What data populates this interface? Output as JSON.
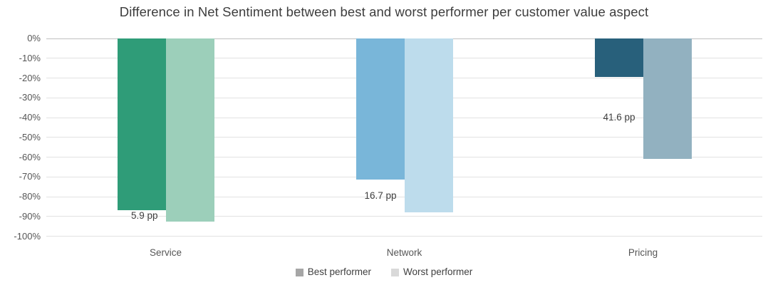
{
  "chart_data": {
    "type": "bar",
    "title": "Difference in Net Sentiment between best and worst performer per customer value aspect",
    "orientation": "vertical",
    "categories": [
      "Service",
      "Network",
      "Pricing"
    ],
    "series": [
      {
        "name": "Best performer",
        "legend_color": "#a6a6a6",
        "values": [
          -86.8,
          -71.2,
          -19.3
        ],
        "bar_colors": [
          "#2f9c78",
          "#79b6d9",
          "#28607b"
        ]
      },
      {
        "name": "Worst performer",
        "legend_color": "#d9d9d9",
        "values": [
          -92.7,
          -87.9,
          -60.9
        ],
        "bar_colors": [
          "#9ccfba",
          "#bddcec",
          "#92b1c0"
        ]
      }
    ],
    "difference_labels": [
      "5.9 pp",
      "16.7 pp",
      "41.6 pp"
    ],
    "y_ticks": [
      {
        "label": "0%",
        "value": 0
      },
      {
        "label": "-10%",
        "value": -10
      },
      {
        "label": "-20%",
        "value": -20
      },
      {
        "label": "-30%",
        "value": -30
      },
      {
        "label": "-40%",
        "value": -40
      },
      {
        "label": "-50%",
        "value": -50
      },
      {
        "label": "-60%",
        "value": -60
      },
      {
        "label": "-70%",
        "value": -70
      },
      {
        "label": "-80%",
        "value": -80
      },
      {
        "label": "-90%",
        "value": -90
      },
      {
        "label": "-100%",
        "value": -100
      }
    ],
    "ylim": [
      -100,
      0
    ],
    "xlabel": "",
    "ylabel": "",
    "grid": true,
    "legend_position": "bottom",
    "colors": {
      "gridline": "#e2e2e2",
      "zero_line": "#c0c0c0",
      "axis_text": "#565656",
      "title_text": "#3d3d3d",
      "data_label_text": "#3e3e3e"
    }
  }
}
